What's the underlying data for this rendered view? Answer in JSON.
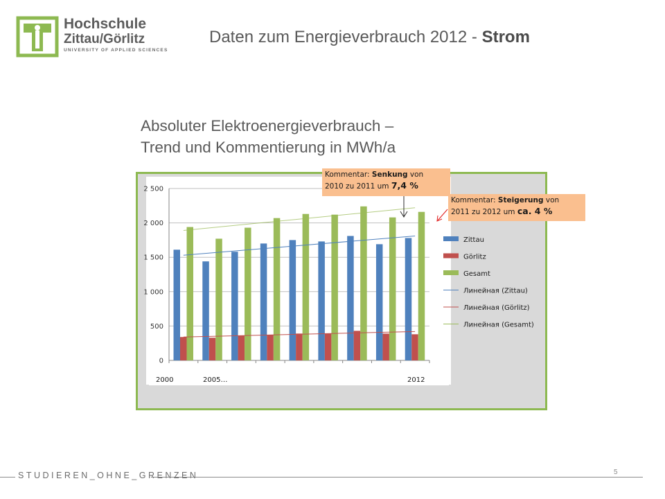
{
  "header": {
    "logo": {
      "line1": "Hochschule",
      "line2": "Zittau/Görlitz",
      "line3": "UNIVERSITY OF APPLIED SCIENCES"
    },
    "title_main": "Daten zum Energieverbrauch 2012 - ",
    "title_bold": "Strom"
  },
  "subtitle": {
    "line1": "Absoluter Elektroenergieverbrauch –",
    "line2": "Trend und Kommentierung in MWh/a"
  },
  "comments": [
    {
      "label": "Kommentar: ",
      "bold": "Senkung",
      "rest": " von",
      "line2": "2010 zu 2011 um ",
      "value": "7,4 %"
    },
    {
      "label": "Kommentar: ",
      "bold": "Steigerung",
      "rest": " von",
      "line2": "2011 zu 2012 um ",
      "value": "ca. 4 %"
    }
  ],
  "footer": {
    "text": "STUDIEREN_OHNE_GRENZEN",
    "page": "5"
  },
  "colors": {
    "zittau": "#4f81bd",
    "goerlitz": "#c0504d",
    "gesamt": "#9bbb59",
    "frame_border": "#8db951",
    "comment_bg": "#fabf8f",
    "logo_green": "#8db951"
  },
  "chart_data": {
    "type": "bar",
    "ylim": [
      0,
      2500
    ],
    "yticks": [
      0,
      500,
      1000,
      1500,
      2000,
      2500
    ],
    "ytick_labels": [
      "0",
      "500",
      "1 000",
      "1 500",
      "2 000",
      "2 500"
    ],
    "x_label_tokens": [
      "2000",
      "2005…",
      "2012"
    ],
    "categories": [
      "",
      "",
      "",
      "",
      "",
      "",
      "",
      "",
      ""
    ],
    "series": [
      {
        "name": "Zittau",
        "values": [
          1610,
          1440,
          1580,
          1700,
          1750,
          1730,
          1810,
          1690,
          1780
        ]
      },
      {
        "name": "Görlitz",
        "values": [
          340,
          330,
          360,
          370,
          390,
          390,
          430,
          390,
          380
        ]
      },
      {
        "name": "Gesamt",
        "values": [
          1940,
          1770,
          1930,
          2070,
          2130,
          2120,
          2240,
          2080,
          2160
        ]
      }
    ],
    "trendlines": [
      {
        "name": "Линейная (Zittau)",
        "values": [
          1530,
          1810
        ]
      },
      {
        "name": "Линейная (Görlitz)",
        "values": [
          340,
          420
        ]
      },
      {
        "name": "Линейная (Gesamt)",
        "values": [
          1890,
          2220
        ]
      }
    ],
    "legend_position": "right",
    "grid": true
  }
}
